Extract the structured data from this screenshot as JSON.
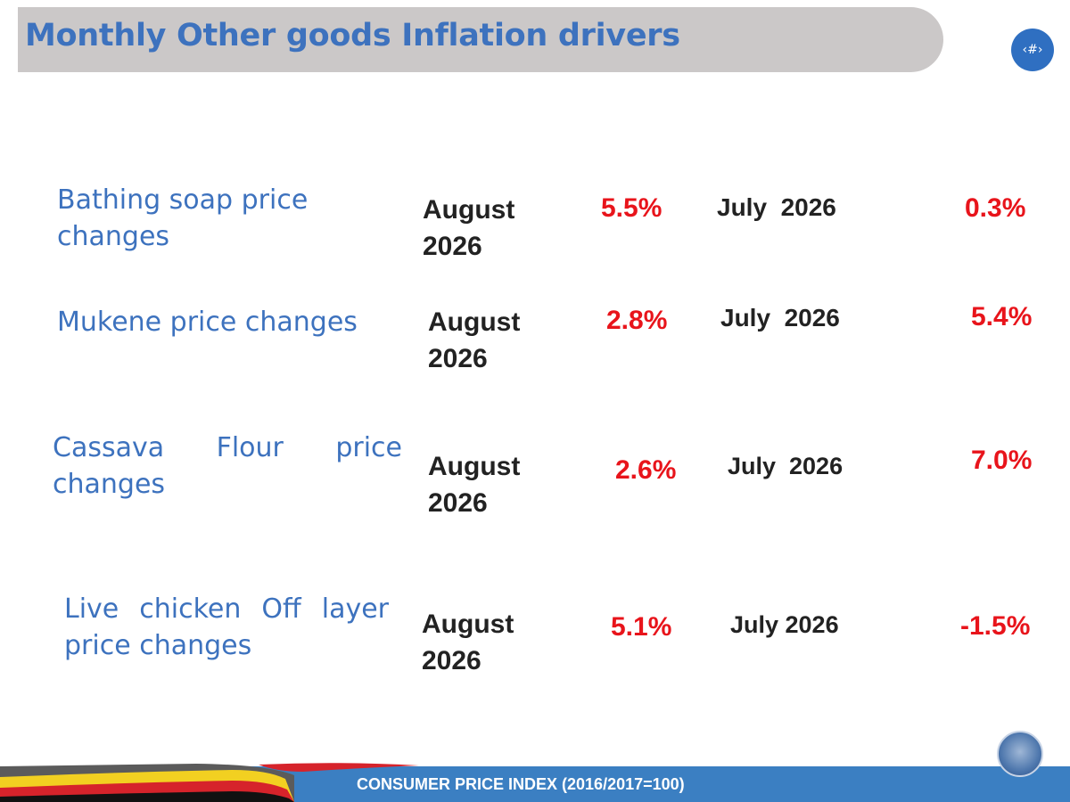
{
  "header": {
    "title": "Monthly Other goods Inflation drivers",
    "slide_number": "‹#›"
  },
  "rows": [
    {
      "label": "Bathing soap price changes",
      "current_period": "August 2026",
      "current_value": "5.5%",
      "previous_period": "July  2026",
      "previous_value": "0.3%"
    },
    {
      "label": "Mukene price changes",
      "current_period": "August 2026",
      "current_value": "2.8%",
      "previous_period": "July  2026",
      "previous_value": "5.4%"
    },
    {
      "label_line1": "Cassava Flour price",
      "label_line2": "changes",
      "current_period": "August 2026",
      "current_value": "2.6%",
      "previous_period": "July  2026",
      "previous_value": "7.0%"
    },
    {
      "label_line1": "Live chicken Off layer",
      "label_line2": "price changes",
      "current_period": "August 2026",
      "current_value": "5.1%",
      "previous_period": "July 2026",
      "previous_value": "-1.5%"
    }
  ],
  "footer": {
    "text": "CONSUMER PRICE INDEX (2016/2017=100)"
  },
  "colors": {
    "title": "#3d72be",
    "value": "#e8141b",
    "footer_bar": "#3b7fc2",
    "title_bar": "#cbc8c8"
  }
}
